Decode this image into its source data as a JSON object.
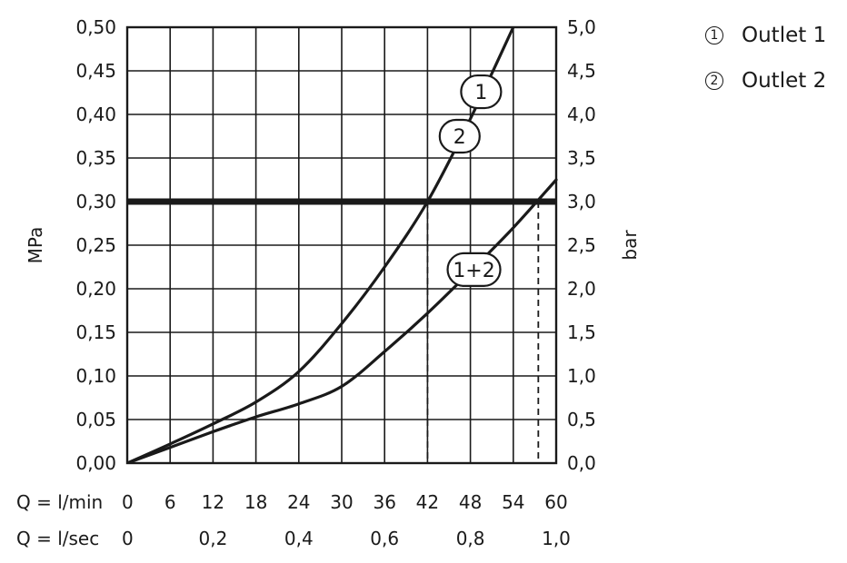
{
  "chart_data": {
    "type": "line",
    "ylabel_left": "MPa",
    "ylabel_right": "bar",
    "xlim": [
      0,
      60
    ],
    "ylim": [
      0,
      0.5
    ],
    "grid": true,
    "y_ticks_left": [
      "0,00",
      "0,05",
      "0,10",
      "0,15",
      "0,20",
      "0,25",
      "0,30",
      "0,35",
      "0,40",
      "0,45",
      "0,50"
    ],
    "y_ticks_right": [
      "0,0",
      "0,5",
      "1,0",
      "1,5",
      "2,0",
      "2,5",
      "3,0",
      "3,5",
      "4,0",
      "4,5",
      "5,0"
    ],
    "x_rows": [
      {
        "label": "Q = l/min",
        "ticks": [
          {
            "x": 0,
            "label": "0"
          },
          {
            "x": 6,
            "label": "6"
          },
          {
            "x": 12,
            "label": "12"
          },
          {
            "x": 18,
            "label": "18"
          },
          {
            "x": 24,
            "label": "24"
          },
          {
            "x": 30,
            "label": "30"
          },
          {
            "x": 36,
            "label": "36"
          },
          {
            "x": 42,
            "label": "42"
          },
          {
            "x": 48,
            "label": "48"
          },
          {
            "x": 54,
            "label": "54"
          },
          {
            "x": 60,
            "label": "60"
          }
        ]
      },
      {
        "label": "Q = l/sec",
        "ticks": [
          {
            "x": 0,
            "label": "0"
          },
          {
            "x": 12,
            "label": "0,2"
          },
          {
            "x": 24,
            "label": "0,4"
          },
          {
            "x": 36,
            "label": "0,6"
          },
          {
            "x": 48,
            "label": "0,8"
          },
          {
            "x": 60,
            "label": "1,0"
          }
        ]
      }
    ],
    "series": [
      {
        "id": "outlets-1-2",
        "labels": [
          "1",
          "2"
        ],
        "x": [
          0,
          6,
          12,
          18,
          24,
          30,
          36,
          42,
          48,
          54
        ],
        "y": [
          0,
          0.022,
          0.045,
          0.07,
          0.105,
          0.16,
          0.225,
          0.3,
          0.395,
          0.5
        ]
      },
      {
        "id": "outlet-1-plus-2",
        "labels": [
          "1+2"
        ],
        "x": [
          0,
          6,
          12,
          18,
          24,
          30,
          36,
          42,
          48,
          54,
          60
        ],
        "y": [
          0,
          0.018,
          0.036,
          0.053,
          0.068,
          0.088,
          0.128,
          0.172,
          0.22,
          0.27,
          0.325
        ]
      }
    ],
    "reference_line": {
      "y": 0.3
    },
    "drop_lines": [
      {
        "x": 42,
        "y": 0.3
      },
      {
        "x": 57.5,
        "y": 0.3
      }
    ],
    "bubbles": [
      {
        "text": "1",
        "x": 49.5,
        "y": 0.426
      },
      {
        "text": "2",
        "x": 46.5,
        "y": 0.375
      },
      {
        "text": "1+2",
        "x": 48.5,
        "y": 0.222
      }
    ]
  },
  "legend": {
    "items": [
      {
        "marker": "1",
        "label": "Outlet 1"
      },
      {
        "marker": "2",
        "label": "Outlet 2"
      }
    ]
  }
}
